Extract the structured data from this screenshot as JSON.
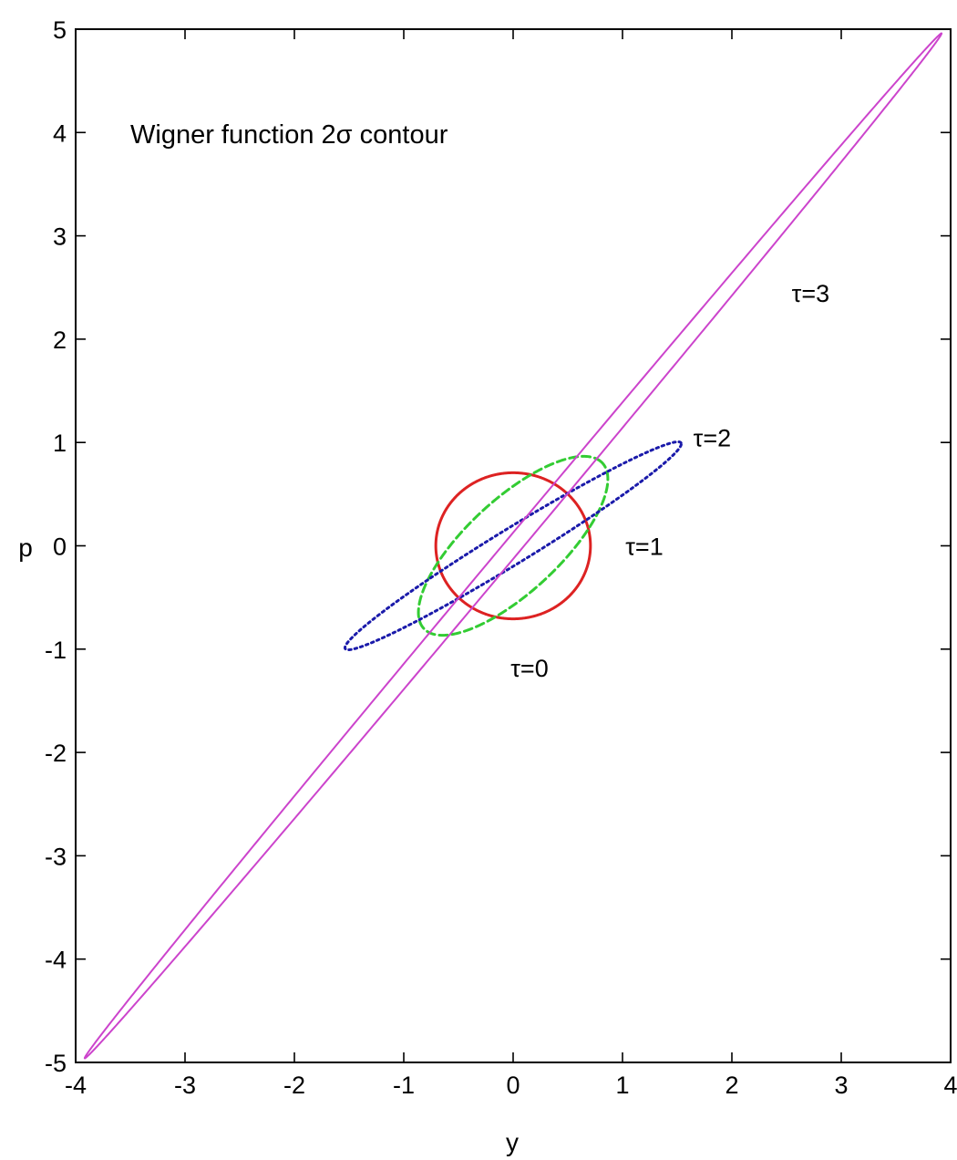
{
  "chart_data": {
    "type": "line",
    "title": "Wigner function 2σ contour",
    "xlabel": "y",
    "ylabel": "p",
    "xlim": [
      -4,
      4
    ],
    "ylim": [
      -5,
      5
    ],
    "x_ticks": [
      -4,
      -3,
      -2,
      -1,
      0,
      1,
      2,
      3,
      4
    ],
    "y_ticks": [
      -5,
      -4,
      -3,
      -2,
      -1,
      0,
      1,
      2,
      3,
      4,
      5
    ],
    "grid": false,
    "legend": "none",
    "series": [
      {
        "name": "τ=0",
        "shape": "ellipse",
        "color": "#dd2222",
        "dash": "solid",
        "semi_axes": [
          0.707,
          0.707
        ],
        "angle_deg": 0,
        "points": [
          [
            0.707,
            0.0
          ],
          [
            0.5,
            0.5
          ],
          [
            0.0,
            0.707
          ],
          [
            -0.5,
            0.5
          ],
          [
            -0.707,
            0.0
          ],
          [
            -0.5,
            -0.5
          ],
          [
            0.0,
            -0.707
          ],
          [
            0.5,
            -0.5
          ]
        ]
      },
      {
        "name": "τ=1",
        "shape": "ellipse",
        "color": "#33cc33",
        "dash": "dashed",
        "semi_axes": [
          1.144,
          0.437
        ],
        "angle_deg": 45,
        "points": [
          [
            0.809,
            0.809
          ],
          [
            0.309,
            0.309
          ],
          [
            -0.809,
            -0.809
          ],
          [
            -0.309,
            -0.309
          ],
          [
            0.4,
            0.65
          ],
          [
            -0.4,
            -0.65
          ],
          [
            0.65,
            0.4
          ],
          [
            -0.65,
            -0.4
          ]
        ]
      },
      {
        "name": "τ=2",
        "shape": "ellipse",
        "color": "#1a1aaa",
        "dash": "dotted",
        "semi_axes": [
          1.83,
          0.167
        ],
        "angle_deg": 33,
        "points": [
          [
            1.4,
            1.12
          ],
          [
            0.6,
            0.62
          ],
          [
            -1.4,
            -1.12
          ],
          [
            -0.6,
            -0.62
          ],
          [
            0.4,
            0.1
          ],
          [
            -0.4,
            -0.1
          ]
        ]
      },
      {
        "name": "τ=3",
        "shape": "ellipse",
        "color": "#cc44cc",
        "dash": "solid",
        "semi_axes": [
          6.32,
          0.079
        ],
        "angle_deg": 51.7,
        "points": [
          [
            3.92,
            4.95
          ],
          [
            -3.92,
            -4.95
          ],
          [
            0.3,
            0.45
          ],
          [
            -0.3,
            -0.45
          ]
        ]
      }
    ],
    "annotations": [
      {
        "text": "τ=0",
        "x": 0.15,
        "y": -1.18
      },
      {
        "text": "τ=1",
        "x": 1.2,
        "y": 0.0
      },
      {
        "text": "τ=2",
        "x": 1.82,
        "y": 1.05
      },
      {
        "text": "τ=3",
        "x": 2.72,
        "y": 2.45
      }
    ]
  }
}
